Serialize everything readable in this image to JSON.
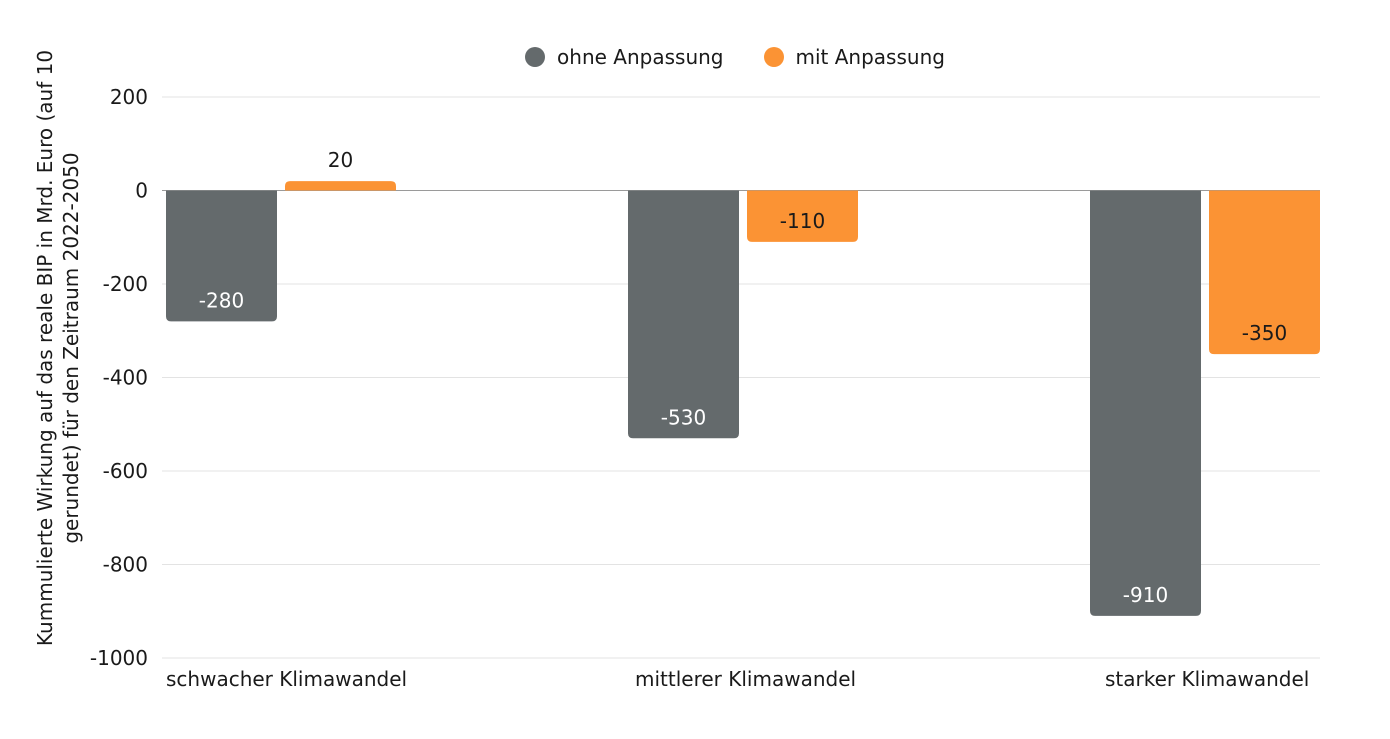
{
  "legend": {
    "series0_label": "ohne Anpassung",
    "series1_label": "mit Anpassung"
  },
  "chart_data": {
    "type": "bar",
    "categories": [
      "schwacher Klimawandel",
      "mittlerer Klimawandel",
      "starker Klimawandel"
    ],
    "series": [
      {
        "name": "ohne Anpassung",
        "color": "#646a6c",
        "values": [
          -280,
          -530,
          -910
        ],
        "labels": [
          "-280",
          "-530",
          "-910"
        ]
      },
      {
        "name": "mit Anpassung",
        "color": "#fb9334",
        "values": [
          20,
          -110,
          -350
        ],
        "labels": [
          "20",
          "-110",
          "-350"
        ]
      }
    ],
    "title": "",
    "xlabel": "",
    "ylabel": "Kummulierte Wirkung auf das reale BIP in Mrd. Euro (auf 10 gerundet) für den Zeitraum 2022-2050",
    "ylim": [
      -1000,
      200
    ],
    "yticks": [
      "200",
      "0",
      "-200",
      "-400",
      "-600",
      "-800",
      "-1000"
    ],
    "ytick_values": [
      200,
      0,
      -200,
      -400,
      -600,
      -800,
      -1000
    ],
    "grid": true,
    "legend_position": "top-center"
  }
}
